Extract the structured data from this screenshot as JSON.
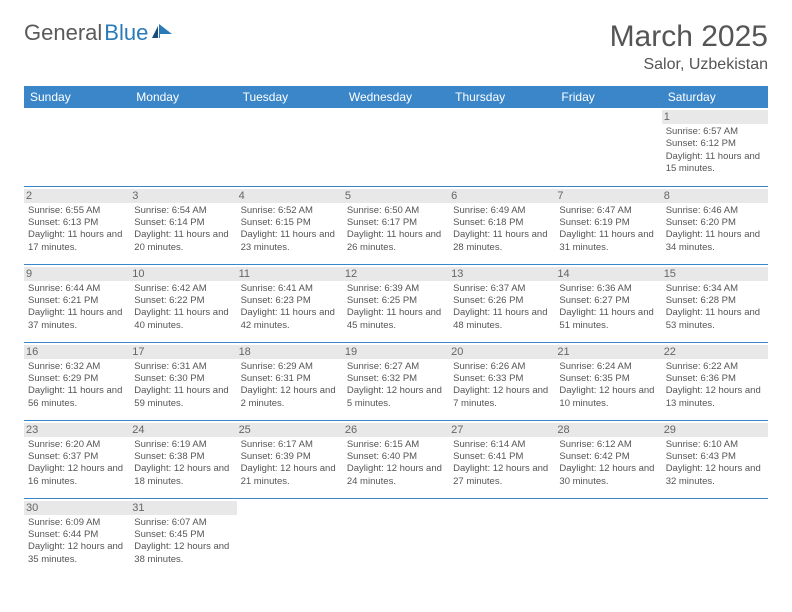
{
  "logo": {
    "part1": "General",
    "part2": "Blue"
  },
  "title": "March 2025",
  "location": "Salor, Uzbekistan",
  "colors": {
    "header_bg": "#3a86c8",
    "header_text": "#ffffff",
    "border": "#3a86c8",
    "daynum_bg": "#e8e8e8",
    "text": "#555555",
    "logo_gray": "#5a5a5a",
    "logo_blue": "#2a7ab8"
  },
  "weekdays": [
    "Sunday",
    "Monday",
    "Tuesday",
    "Wednesday",
    "Thursday",
    "Friday",
    "Saturday"
  ],
  "weeks": [
    [
      null,
      null,
      null,
      null,
      null,
      null,
      {
        "n": "1",
        "sr": "6:57 AM",
        "ss": "6:12 PM",
        "dl": "11 hours and 15 minutes."
      }
    ],
    [
      {
        "n": "2",
        "sr": "6:55 AM",
        "ss": "6:13 PM",
        "dl": "11 hours and 17 minutes."
      },
      {
        "n": "3",
        "sr": "6:54 AM",
        "ss": "6:14 PM",
        "dl": "11 hours and 20 minutes."
      },
      {
        "n": "4",
        "sr": "6:52 AM",
        "ss": "6:15 PM",
        "dl": "11 hours and 23 minutes."
      },
      {
        "n": "5",
        "sr": "6:50 AM",
        "ss": "6:17 PM",
        "dl": "11 hours and 26 minutes."
      },
      {
        "n": "6",
        "sr": "6:49 AM",
        "ss": "6:18 PM",
        "dl": "11 hours and 28 minutes."
      },
      {
        "n": "7",
        "sr": "6:47 AM",
        "ss": "6:19 PM",
        "dl": "11 hours and 31 minutes."
      },
      {
        "n": "8",
        "sr": "6:46 AM",
        "ss": "6:20 PM",
        "dl": "11 hours and 34 minutes."
      }
    ],
    [
      {
        "n": "9",
        "sr": "6:44 AM",
        "ss": "6:21 PM",
        "dl": "11 hours and 37 minutes."
      },
      {
        "n": "10",
        "sr": "6:42 AM",
        "ss": "6:22 PM",
        "dl": "11 hours and 40 minutes."
      },
      {
        "n": "11",
        "sr": "6:41 AM",
        "ss": "6:23 PM",
        "dl": "11 hours and 42 minutes."
      },
      {
        "n": "12",
        "sr": "6:39 AM",
        "ss": "6:25 PM",
        "dl": "11 hours and 45 minutes."
      },
      {
        "n": "13",
        "sr": "6:37 AM",
        "ss": "6:26 PM",
        "dl": "11 hours and 48 minutes."
      },
      {
        "n": "14",
        "sr": "6:36 AM",
        "ss": "6:27 PM",
        "dl": "11 hours and 51 minutes."
      },
      {
        "n": "15",
        "sr": "6:34 AM",
        "ss": "6:28 PM",
        "dl": "11 hours and 53 minutes."
      }
    ],
    [
      {
        "n": "16",
        "sr": "6:32 AM",
        "ss": "6:29 PM",
        "dl": "11 hours and 56 minutes."
      },
      {
        "n": "17",
        "sr": "6:31 AM",
        "ss": "6:30 PM",
        "dl": "11 hours and 59 minutes."
      },
      {
        "n": "18",
        "sr": "6:29 AM",
        "ss": "6:31 PM",
        "dl": "12 hours and 2 minutes."
      },
      {
        "n": "19",
        "sr": "6:27 AM",
        "ss": "6:32 PM",
        "dl": "12 hours and 5 minutes."
      },
      {
        "n": "20",
        "sr": "6:26 AM",
        "ss": "6:33 PM",
        "dl": "12 hours and 7 minutes."
      },
      {
        "n": "21",
        "sr": "6:24 AM",
        "ss": "6:35 PM",
        "dl": "12 hours and 10 minutes."
      },
      {
        "n": "22",
        "sr": "6:22 AM",
        "ss": "6:36 PM",
        "dl": "12 hours and 13 minutes."
      }
    ],
    [
      {
        "n": "23",
        "sr": "6:20 AM",
        "ss": "6:37 PM",
        "dl": "12 hours and 16 minutes."
      },
      {
        "n": "24",
        "sr": "6:19 AM",
        "ss": "6:38 PM",
        "dl": "12 hours and 18 minutes."
      },
      {
        "n": "25",
        "sr": "6:17 AM",
        "ss": "6:39 PM",
        "dl": "12 hours and 21 minutes."
      },
      {
        "n": "26",
        "sr": "6:15 AM",
        "ss": "6:40 PM",
        "dl": "12 hours and 24 minutes."
      },
      {
        "n": "27",
        "sr": "6:14 AM",
        "ss": "6:41 PM",
        "dl": "12 hours and 27 minutes."
      },
      {
        "n": "28",
        "sr": "6:12 AM",
        "ss": "6:42 PM",
        "dl": "12 hours and 30 minutes."
      },
      {
        "n": "29",
        "sr": "6:10 AM",
        "ss": "6:43 PM",
        "dl": "12 hours and 32 minutes."
      }
    ],
    [
      {
        "n": "30",
        "sr": "6:09 AM",
        "ss": "6:44 PM",
        "dl": "12 hours and 35 minutes."
      },
      {
        "n": "31",
        "sr": "6:07 AM",
        "ss": "6:45 PM",
        "dl": "12 hours and 38 minutes."
      },
      null,
      null,
      null,
      null,
      null
    ]
  ],
  "labels": {
    "sunrise": "Sunrise:",
    "sunset": "Sunset:",
    "daylight": "Daylight:"
  }
}
